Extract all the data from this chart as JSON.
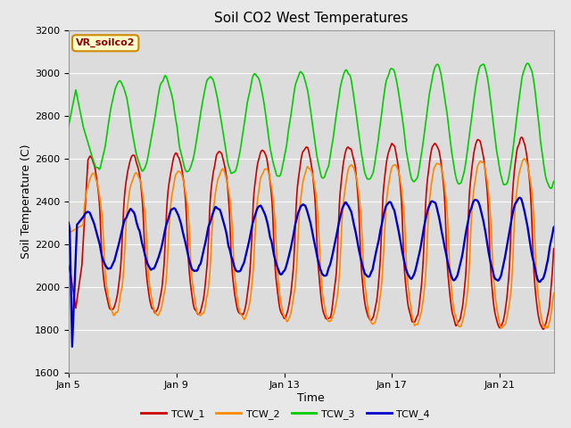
{
  "title": "Soil CO2 West Temperatures",
  "xlabel": "Time",
  "ylabel": "Soil Temperature (C)",
  "ylim": [
    1600,
    3200
  ],
  "xlim_days": [
    5,
    23
  ],
  "xtick_positions": [
    5,
    9,
    13,
    17,
    21
  ],
  "xtick_labels": [
    "Jan 5",
    "Jan 9",
    "Jan 13",
    "Jan 17",
    "Jan 21"
  ],
  "colors": {
    "TCW_1": "#cc0000",
    "TCW_2": "#ff8800",
    "TCW_3": "#00cc00",
    "TCW_4": "#0000cc"
  },
  "legend_label": "VR_soilco2",
  "fig_bg": "#e8e8e8",
  "plot_bg": "#dcdcdc",
  "linewidth": 1.2,
  "title_fontsize": 11,
  "axis_label_fontsize": 9,
  "tick_fontsize": 8
}
